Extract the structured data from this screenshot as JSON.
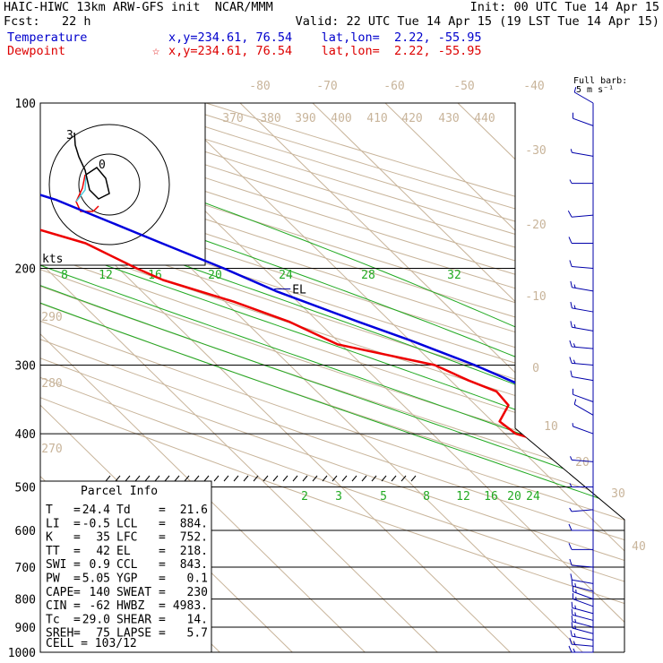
{
  "header": {
    "model": "HAIC-HIWC 13km ARW-GFS init",
    "org": "NCAR/MMM",
    "init": "Init: 00 UTC Tue 14 Apr 15",
    "fcst_label": "Fcst:",
    "fcst_value": "22 h",
    "valid": "Valid: 22 UTC Tue 14 Apr 15 (19 LST Tue 14 Apr 15)",
    "temperature_label": "Temperature",
    "temperature_loc": "x,y=234.61, 76.54    lat,lon=  2.22, -55.95",
    "dewpoint_label": "Dewpoint",
    "dewpoint_star": "☆",
    "dewpoint_loc": "x,y=234.61, 76.54    lat,lon=  2.22, -55.95"
  },
  "colors": {
    "temperature": "#0000dd",
    "dewpoint": "#ee0000",
    "isotherm": "#c8b49a",
    "mixing_ratio": "#22aa22",
    "isobar": "#000000",
    "wind_barb": "#0000aa",
    "hodo_cyan": "#55ccdd"
  },
  "wind": {
    "legend_title": "Full barb:",
    "legend_unit": "5 m s⁻¹"
  },
  "hodograph": {
    "kts": "kts",
    "marker_hi": "3",
    "marker_lo": "0"
  },
  "parcel_info": {
    "title": "Parcel Info",
    "rows": [
      {
        "l1": "T",
        "v1": "24.4",
        "l2": "Td",
        "v2": "21.6"
      },
      {
        "l1": "LI",
        "v1": "-0.5",
        "l2": "LCL",
        "v2": "884."
      },
      {
        "l1": "K",
        "v1": "35",
        "l2": "LFC",
        "v2": "752."
      },
      {
        "l1": "TT",
        "v1": "42",
        "l2": "EL",
        "v2": "218."
      },
      {
        "l1": "SWI",
        "v1": "0.9",
        "l2": "CCL",
        "v2": "843."
      },
      {
        "l1": "PW",
        "v1": "5.05",
        "l2": "YGP",
        "v2": "0.1"
      },
      {
        "l1": "CAPE",
        "v1": "140",
        "l2": "SWEAT",
        "v2": "230"
      },
      {
        "l1": "CIN",
        "v1": "-62",
        "l2": "HWBZ",
        "v2": "4983."
      },
      {
        "l1": "Tc",
        "v1": "29.0",
        "l2": "SHEAR",
        "v2": "14."
      },
      {
        "l1": "SREH",
        "v1": "75",
        "l2": "LAPSE",
        "v2": "5.7"
      }
    ],
    "cell": "CELL = 103/12"
  },
  "chart_data": {
    "type": "line",
    "title": "Skew-T log-p sounding",
    "pressure_levels_hpa": [
      100,
      200,
      300,
      400,
      500,
      600,
      700,
      800,
      900,
      1000
    ],
    "pressure_labels": [
      "100",
      "200",
      "300",
      "400",
      "500",
      "600",
      "700",
      "800",
      "900",
      "1000"
    ],
    "isotherm_labels_c": [
      "-80",
      "-70",
      "-60",
      "-50",
      "-40",
      "-30",
      "-20",
      "-10",
      "0",
      "10",
      "20",
      "30",
      "40"
    ],
    "theta_labels": [
      "370",
      "380",
      "390",
      "400",
      "410",
      "420",
      "430",
      "440"
    ],
    "theta_left_labels": [
      "290",
      "280",
      "270"
    ],
    "mixing_ratio_labels_upper": [
      "8",
      "12",
      "16",
      "20",
      "24",
      "28",
      "32"
    ],
    "mixing_ratio_labels_lower": [
      "2",
      "3",
      "5",
      "8",
      "12",
      "16",
      "20",
      "24"
    ],
    "levels_marked": [
      {
        "name": "EL",
        "p": 218
      },
      {
        "name": "LFC",
        "p": 752
      },
      {
        "name": "CCL",
        "p": 843
      },
      {
        "name": "LCL",
        "p": 884
      }
    ],
    "series": [
      {
        "name": "Temperature",
        "points": [
          [
            992,
            24.4
          ],
          [
            970,
            22.5
          ],
          [
            950,
            21.0
          ],
          [
            925,
            19.8
          ],
          [
            900,
            18.8
          ],
          [
            870,
            17.6
          ],
          [
            850,
            16.6
          ],
          [
            800,
            14.2
          ],
          [
            750,
            11.6
          ],
          [
            700,
            9.4
          ],
          [
            650,
            6.4
          ],
          [
            600,
            3.8
          ],
          [
            550,
            0.8
          ],
          [
            500,
            -2.8
          ],
          [
            450,
            -6.8
          ],
          [
            400,
            -11.6
          ],
          [
            370,
            -14.9
          ],
          [
            350,
            -18.0
          ],
          [
            330,
            -20.5
          ],
          [
            300,
            -24.5
          ],
          [
            270,
            -30.0
          ],
          [
            250,
            -34.5
          ],
          [
            220,
            -41.5
          ],
          [
            200,
            -45.5
          ],
          [
            180,
            -50.5
          ],
          [
            160,
            -56.0
          ],
          [
            150,
            -59.0
          ],
          [
            140,
            -64.0
          ],
          [
            130,
            -68.0
          ],
          [
            120,
            -72.5
          ],
          [
            110,
            -76.0
          ],
          [
            100,
            -79.5
          ]
        ]
      },
      {
        "name": "Dewpoint",
        "points": [
          [
            975,
            21.6
          ],
          [
            950,
            20.7
          ],
          [
            930,
            19.7
          ],
          [
            900,
            17.0
          ],
          [
            850,
            14.8
          ],
          [
            800,
            12.6
          ],
          [
            750,
            10.4
          ],
          [
            700,
            7.5
          ],
          [
            650,
            4.2
          ],
          [
            600,
            1.5
          ],
          [
            560,
            -2.8
          ],
          [
            500,
            -8.8
          ],
          [
            450,
            -19.5
          ],
          [
            400,
            -28.5
          ],
          [
            380,
            -29.0
          ],
          [
            355,
            -25.5
          ],
          [
            335,
            -25.2
          ],
          [
            320,
            -27.5
          ],
          [
            300,
            -30.0
          ],
          [
            275,
            -40.5
          ],
          [
            250,
            -44.0
          ],
          [
            230,
            -48.8
          ],
          [
            210,
            -55.5
          ],
          [
            200,
            -57.5
          ],
          [
            180,
            -61.0
          ],
          [
            170,
            -65.5
          ],
          [
            160,
            -76.0
          ],
          [
            150,
            -73.5
          ],
          [
            140,
            -66.5
          ],
          [
            130,
            -66.8
          ],
          [
            120,
            -70.0
          ],
          [
            105,
            -72.5
          ],
          [
            100,
            -74.0
          ]
        ]
      }
    ],
    "wind_profile": [
      [
        1000,
        8.0,
        270
      ],
      [
        975,
        8.0,
        275
      ],
      [
        950,
        8.5,
        280
      ],
      [
        925,
        8.5,
        285
      ],
      [
        900,
        8.0,
        285
      ],
      [
        875,
        7.5,
        285
      ],
      [
        850,
        7.5,
        285
      ],
      [
        825,
        7.0,
        290
      ],
      [
        800,
        7.0,
        290
      ],
      [
        775,
        6.5,
        285
      ],
      [
        750,
        6.0,
        280
      ],
      [
        700,
        5.0,
        275
      ],
      [
        650,
        4.5,
        270
      ],
      [
        600,
        4.0,
        270
      ],
      [
        550,
        3.5,
        265
      ],
      [
        500,
        3.0,
        270
      ],
      [
        450,
        2.5,
        275
      ],
      [
        400,
        3.0,
        290
      ],
      [
        370,
        4.0,
        300
      ],
      [
        350,
        5.0,
        290
      ],
      [
        320,
        6.0,
        280
      ],
      [
        300,
        7.0,
        275
      ],
      [
        280,
        7.0,
        275
      ],
      [
        260,
        6.5,
        280
      ],
      [
        240,
        6.5,
        280
      ],
      [
        220,
        6.5,
        280
      ],
      [
        200,
        6.0,
        275
      ],
      [
        180,
        5.0,
        270
      ],
      [
        160,
        4.0,
        265
      ],
      [
        140,
        3.5,
        270
      ],
      [
        125,
        3.5,
        280
      ],
      [
        110,
        4.0,
        290
      ],
      [
        100,
        4.0,
        300
      ]
    ],
    "hodograph_points": [
      [
        0,
        0
      ],
      [
        -4,
        -5
      ],
      [
        -6,
        -6
      ],
      [
        -7,
        -3
      ],
      [
        -5,
        1
      ],
      [
        -3,
        4
      ],
      [
        -1,
        6
      ],
      [
        0,
        8
      ],
      [
        -1,
        10
      ],
      [
        -3,
        15
      ]
    ],
    "xlabel": "",
    "ylabel": "",
    "grid": true
  }
}
